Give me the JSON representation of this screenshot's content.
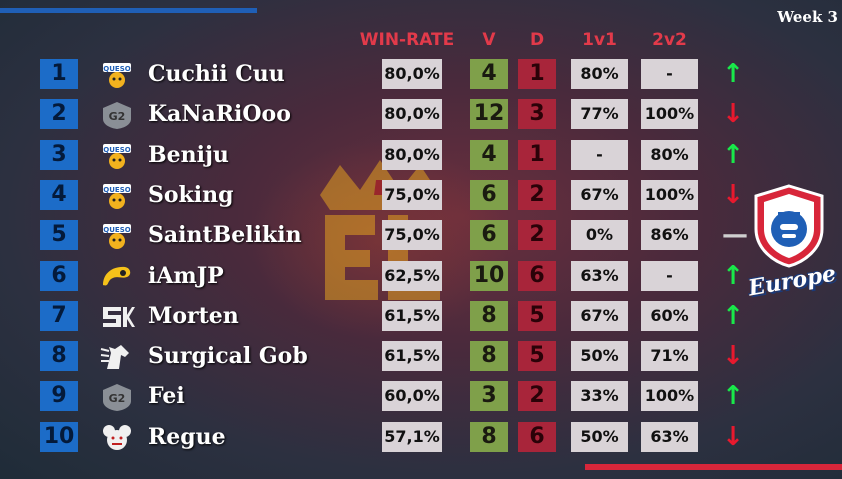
{
  "week_label": "Week 3",
  "headers": {
    "win_rate": "WIN-RATE",
    "v": "V",
    "d": "D",
    "one_v_one": "1v1",
    "two_v_two": "2v2"
  },
  "region_label": "Europe",
  "players": [
    {
      "rank": "1",
      "name": "Cuchii Cuu",
      "team_icon": "queso-icon",
      "win_rate": "80,0%",
      "v": "4",
      "d": "1",
      "one_v_one": "80%",
      "two_v_two": "-",
      "trend": "up"
    },
    {
      "rank": "2",
      "name": "KaNaRiOoo",
      "team_icon": "g2-icon",
      "win_rate": "80,0%",
      "v": "12",
      "d": "3",
      "one_v_one": "77%",
      "two_v_two": "100%",
      "trend": "down"
    },
    {
      "rank": "3",
      "name": "Beniju",
      "team_icon": "queso-icon",
      "win_rate": "80,0%",
      "v": "4",
      "d": "1",
      "one_v_one": "-",
      "two_v_two": "80%",
      "trend": "up"
    },
    {
      "rank": "4",
      "name": "Soking",
      "team_icon": "queso-icon",
      "win_rate": "75,0%",
      "v": "6",
      "d": "2",
      "one_v_one": "67%",
      "two_v_two": "100%",
      "trend": "down"
    },
    {
      "rank": "5",
      "name": "SaintBelikin",
      "team_icon": "queso-icon",
      "win_rate": "75,0%",
      "v": "6",
      "d": "2",
      "one_v_one": "0%",
      "two_v_two": "86%",
      "trend": "flat"
    },
    {
      "rank": "6",
      "name": "iAmJP",
      "team_icon": "yellow-swirl-icon",
      "win_rate": "62,5%",
      "v": "10",
      "d": "6",
      "one_v_one": "63%",
      "two_v_two": "-",
      "trend": "up"
    },
    {
      "rank": "7",
      "name": "Morten",
      "team_icon": "sk-icon",
      "win_rate": "61,5%",
      "v": "8",
      "d": "5",
      "one_v_one": "67%",
      "two_v_two": "60%",
      "trend": "up"
    },
    {
      "rank": "8",
      "name": "Surgical Gob",
      "team_icon": "horse-icon",
      "win_rate": "61,5%",
      "v": "8",
      "d": "5",
      "one_v_one": "50%",
      "two_v_two": "71%",
      "trend": "down"
    },
    {
      "rank": "9",
      "name": "Fei",
      "team_icon": "g2-icon",
      "win_rate": "60,0%",
      "v": "3",
      "d": "2",
      "one_v_one": "33%",
      "two_v_two": "100%",
      "trend": "up"
    },
    {
      "rank": "10",
      "name": "Regue",
      "team_icon": "mouse-mascot-icon",
      "win_rate": "57,1%",
      "v": "8",
      "d": "6",
      "one_v_one": "50%",
      "two_v_two": "63%",
      "trend": "down"
    }
  ],
  "colors": {
    "rank_blue": "#1c6cc8",
    "header_red": "#e23a4a",
    "victory_green": "#7fa04a",
    "defeat_red": "#a8253a",
    "arrow_up": "#19e84a",
    "arrow_down": "#e8192e"
  }
}
